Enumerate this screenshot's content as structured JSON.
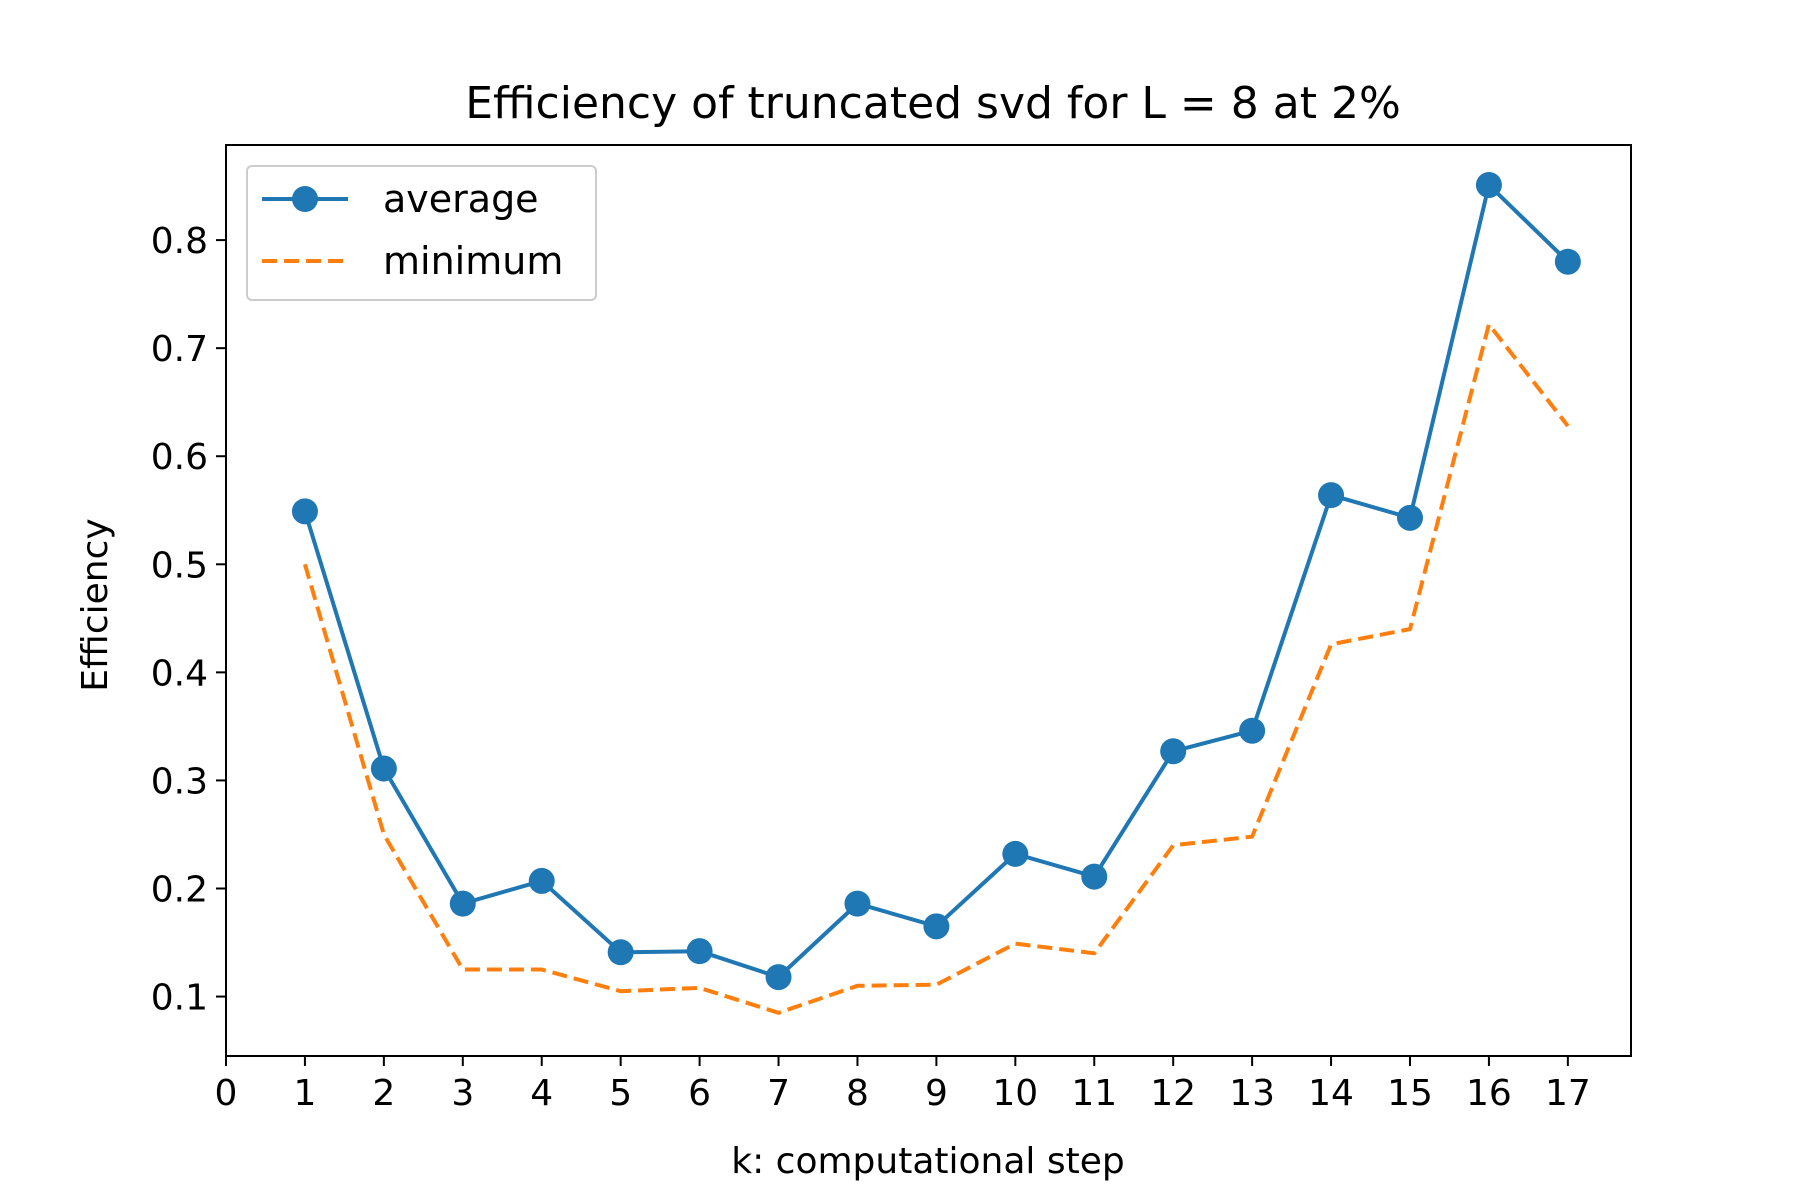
{
  "chart_data": {
    "type": "line",
    "title": "Efficiency of truncated svd for L = 8 at 2%",
    "xlabel": "k: computational step",
    "ylabel": "Efficiency",
    "xlim": [
      0,
      17.8
    ],
    "ylim": [
      0.045,
      0.888
    ],
    "xticks": [
      0,
      1,
      2,
      3,
      4,
      5,
      6,
      7,
      8,
      9,
      10,
      11,
      12,
      13,
      14,
      15,
      16,
      17
    ],
    "yticks": [
      0.1,
      0.2,
      0.3,
      0.4,
      0.5,
      0.6,
      0.7,
      0.8
    ],
    "ytick_labels": [
      "0.1",
      "0.2",
      "0.3",
      "0.4",
      "0.5",
      "0.6",
      "0.7",
      "0.8"
    ],
    "grid": false,
    "legend_position": "upper-left",
    "x": [
      1,
      2,
      3,
      4,
      5,
      6,
      7,
      8,
      9,
      10,
      11,
      12,
      13,
      14,
      15,
      16,
      17
    ],
    "series": [
      {
        "name": "average",
        "color": "#1f77b4",
        "style": "solid-with-markers",
        "values": [
          0.549,
          0.311,
          0.186,
          0.207,
          0.141,
          0.142,
          0.118,
          0.186,
          0.165,
          0.232,
          0.211,
          0.327,
          0.346,
          0.564,
          0.543,
          0.851,
          0.78
        ]
      },
      {
        "name": "minimum",
        "color": "#ff7f0e",
        "style": "dashed",
        "values": [
          0.5,
          0.25,
          0.125,
          0.125,
          0.105,
          0.108,
          0.085,
          0.11,
          0.111,
          0.149,
          0.14,
          0.24,
          0.248,
          0.426,
          0.44,
          0.722,
          0.628
        ]
      }
    ]
  }
}
